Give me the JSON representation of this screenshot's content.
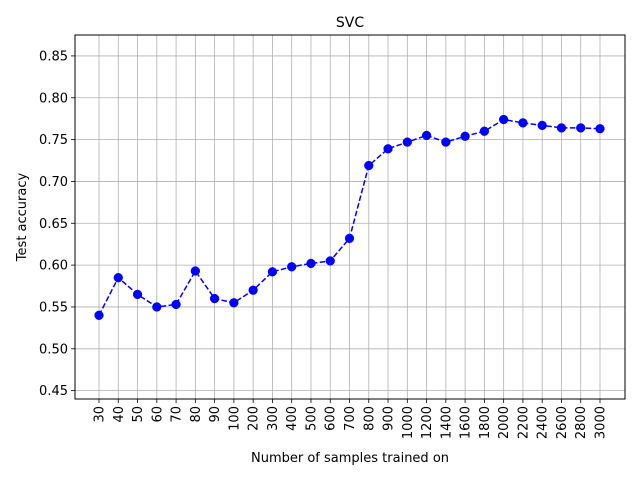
{
  "chart_data": {
    "type": "line",
    "title": "SVC",
    "xlabel": "Number of samples trained on",
    "ylabel": "Test accuracy",
    "categories": [
      "30",
      "40",
      "50",
      "60",
      "70",
      "80",
      "90",
      "100",
      "200",
      "300",
      "400",
      "500",
      "600",
      "700",
      "800",
      "900",
      "1000",
      "1200",
      "1400",
      "1600",
      "1800",
      "2000",
      "2200",
      "2400",
      "2600",
      "2800",
      "3000"
    ],
    "series": [
      {
        "values": [
          0.54,
          0.585,
          0.565,
          0.55,
          0.553,
          0.593,
          0.56,
          0.555,
          0.57,
          0.592,
          0.598,
          0.602,
          0.605,
          0.632,
          0.719,
          0.739,
          0.747,
          0.755,
          0.747,
          0.754,
          0.76,
          0.774,
          0.77,
          0.767,
          0.764,
          0.764,
          0.763
        ],
        "color": "#0000ff",
        "line_style": "dashed",
        "marker": "circle"
      }
    ],
    "ylim": [
      0.44,
      0.875
    ],
    "yticks": [
      "0.45",
      "0.50",
      "0.55",
      "0.60",
      "0.65",
      "0.70",
      "0.75",
      "0.80",
      "0.85"
    ],
    "grid": true,
    "legend": "none",
    "x_tick_rotation": "vertical"
  }
}
